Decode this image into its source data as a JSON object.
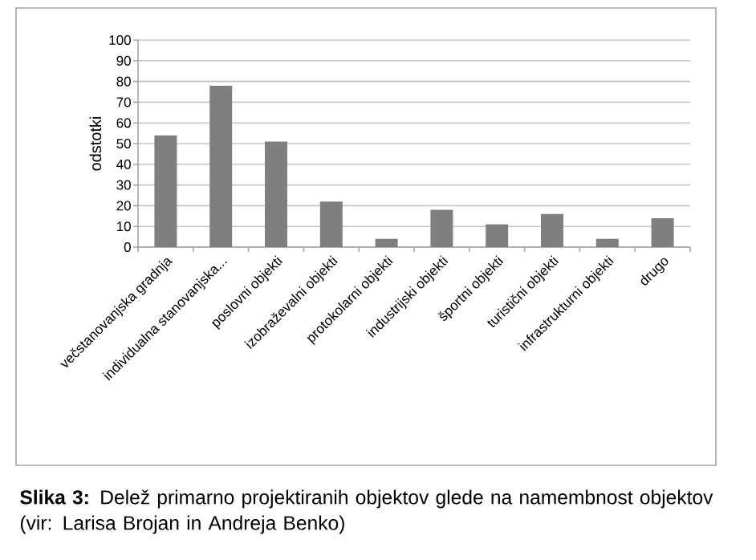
{
  "chart_data": {
    "type": "bar",
    "categories": [
      "večstanovanjska gradnja",
      "individualna stanovanjska...",
      "poslovni objekti",
      "izobraževalni objekti",
      "protokolarni objekti",
      "industrijski objekti",
      "športni objekti",
      "turistični objekti",
      "infrastrukturni objekti",
      "drugo"
    ],
    "values": [
      54,
      78,
      51,
      22,
      4,
      18,
      11,
      16,
      4,
      14
    ],
    "color": "#7f7f7f",
    "ylabel": "odstotki",
    "ylim": [
      0,
      100
    ],
    "yticks": [
      0,
      10,
      20,
      30,
      40,
      50,
      60,
      70,
      80,
      90,
      100
    ],
    "grid": "y",
    "annotations": [
      "**Slika 3:** Delež primarno projektiranih objektov glede na namembnost objektov (vir: Larisa Brojan in Andreja Benko)"
    ]
  }
}
